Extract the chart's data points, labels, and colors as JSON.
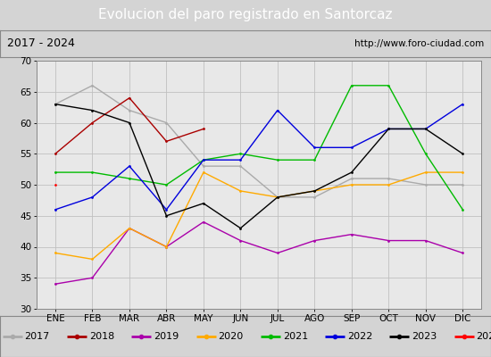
{
  "title": "Evolucion del paro registrado en Santorcaz",
  "subtitle_left": "2017 - 2024",
  "subtitle_right": "http://www.foro-ciudad.com",
  "xlabel_ticks": [
    "ENE",
    "FEB",
    "MAR",
    "ABR",
    "MAY",
    "JUN",
    "JUL",
    "AGO",
    "SEP",
    "OCT",
    "NOV",
    "DIC"
  ],
  "ylim": [
    30,
    70
  ],
  "yticks": [
    30,
    35,
    40,
    45,
    50,
    55,
    60,
    65,
    70
  ],
  "series": {
    "2017": {
      "color": "#aaaaaa",
      "values": [
        63,
        66,
        62,
        60,
        53,
        53,
        48,
        48,
        51,
        51,
        50,
        50
      ]
    },
    "2018": {
      "color": "#aa0000",
      "values": [
        55,
        60,
        64,
        57,
        59,
        null,
        null,
        null,
        null,
        null,
        null,
        null
      ]
    },
    "2019": {
      "color": "#aa00aa",
      "values": [
        34,
        35,
        43,
        40,
        44,
        41,
        39,
        41,
        42,
        41,
        41,
        39
      ]
    },
    "2020": {
      "color": "#ffaa00",
      "values": [
        39,
        38,
        43,
        40,
        52,
        49,
        48,
        49,
        50,
        50,
        52,
        52
      ]
    },
    "2021": {
      "color": "#00bb00",
      "values": [
        52,
        52,
        51,
        50,
        54,
        55,
        54,
        54,
        66,
        66,
        55,
        46
      ]
    },
    "2022": {
      "color": "#0000dd",
      "values": [
        46,
        48,
        53,
        46,
        54,
        54,
        62,
        56,
        56,
        59,
        59,
        63
      ]
    },
    "2023": {
      "color": "#000000",
      "values": [
        63,
        62,
        60,
        45,
        47,
        43,
        48,
        49,
        52,
        59,
        59,
        55
      ]
    },
    "2024": {
      "color": "#ff0000",
      "values": [
        50,
        null,
        null,
        null,
        null,
        null,
        null,
        null,
        null,
        null,
        null,
        null
      ]
    }
  },
  "background_color": "#d4d4d4",
  "plot_bg_color": "#e8e8e8",
  "title_bg_color": "#4169aa",
  "title_color": "#ffffff",
  "grid_color": "#c0c0c0",
  "subtitle_border_color": "#888888",
  "title_fontsize": 11,
  "tick_fontsize": 7.5,
  "legend_fontsize": 8
}
